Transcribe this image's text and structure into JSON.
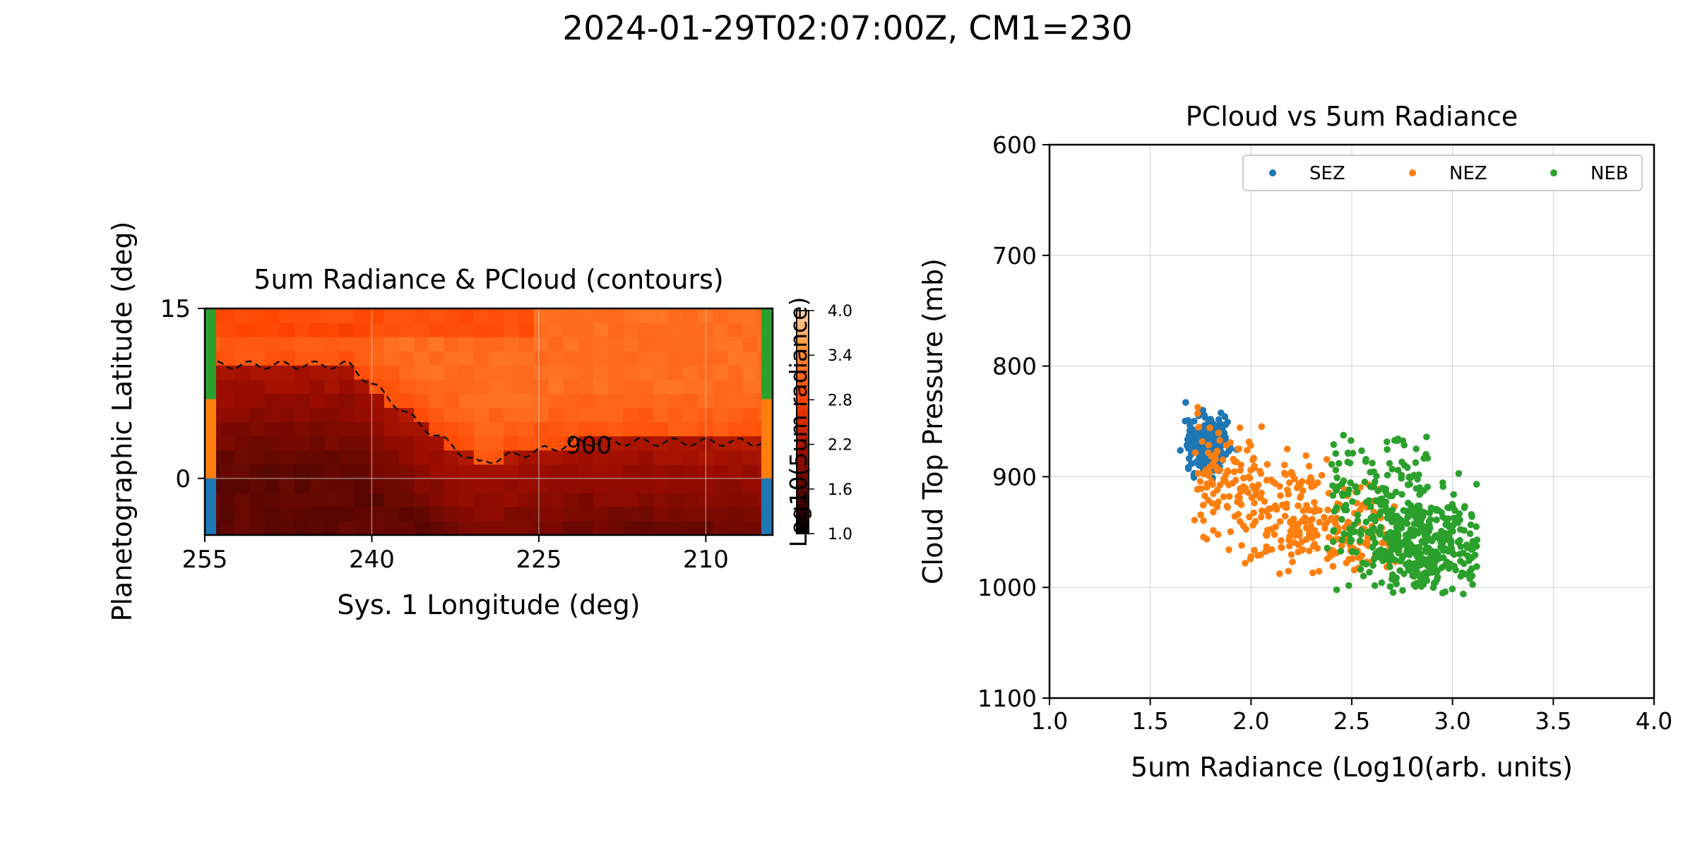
{
  "figure": {
    "suptitle": "2024-01-29T02:07:00Z, CM1=230"
  },
  "chart_data": [
    {
      "type": "heatmap",
      "title": "5um Radiance & PCloud (contours)",
      "xlabel": "Sys. 1 Longitude (deg)",
      "ylabel": "Planetographic Latitude (deg)",
      "xlim": [
        255,
        204
      ],
      "ylim": [
        -5,
        15
      ],
      "xticks": [
        255,
        240,
        225,
        210
      ],
      "yticks": [
        0,
        15
      ],
      "grid": true,
      "colorbar": {
        "label": "Log10(5um radiance)",
        "range": [
          1.0,
          4.0
        ],
        "ticks": [
          "4.0",
          "3.4",
          "2.8",
          "2.2",
          "1.6",
          "1.0"
        ]
      },
      "contour": {
        "level_label": "900",
        "style": "dashed"
      },
      "region_bars": [
        {
          "name": "SEZ",
          "lat_range": [
            -5,
            0
          ],
          "color": "#1f77b4"
        },
        {
          "name": "NEZ",
          "lat_range": [
            0,
            7
          ],
          "color": "#ff7f0e"
        },
        {
          "name": "NEB",
          "lat_range": [
            7,
            15
          ],
          "color": "#2ca02c"
        }
      ]
    },
    {
      "type": "scatter",
      "title": "PCloud vs 5um Radiance",
      "xlabel": "5um Radiance (Log10(arb. units)",
      "ylabel": "Cloud Top Pressure (mb)",
      "xlim": [
        1.0,
        4.0
      ],
      "ylim": [
        1100,
        600
      ],
      "y_inverted": true,
      "xticks": [
        "1.0",
        "1.5",
        "2.0",
        "2.5",
        "3.0",
        "3.5",
        "4.0"
      ],
      "yticks": [
        "600",
        "700",
        "800",
        "900",
        "1000",
        "1100"
      ],
      "grid": true,
      "legend": {
        "placement": "top-right",
        "columns": 3
      },
      "series": [
        {
          "name": "SEZ",
          "color": "#1f77b4",
          "x_range": [
            1.65,
            1.95
          ],
          "y_range": [
            835,
            905
          ],
          "center": [
            1.78,
            870
          ]
        },
        {
          "name": "NEZ",
          "color": "#ff7f0e",
          "x_range": [
            1.7,
            2.75
          ],
          "y_range": [
            810,
            985
          ],
          "center": [
            2.15,
            890
          ]
        },
        {
          "name": "NEB",
          "color": "#2ca02c",
          "x_range": [
            2.35,
            3.12
          ],
          "y_range": [
            840,
            1005
          ],
          "center": [
            2.85,
            960
          ]
        }
      ]
    }
  ]
}
